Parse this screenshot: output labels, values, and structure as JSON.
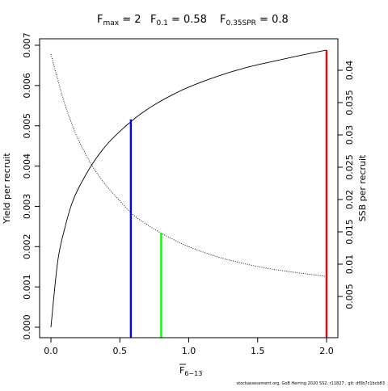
{
  "chart_data": {
    "type": "line",
    "title_parts": {
      "fmax": {
        "base": "F",
        "sub": "max",
        "value": "2"
      },
      "f01": {
        "base": "F",
        "sub": "0.1",
        "value": "0.58"
      },
      "fspr": {
        "base": "F",
        "sub": "0.35SPR",
        "value": "0.8"
      }
    },
    "xlabel": {
      "base": "F",
      "sub": "6−13",
      "overbar": true
    },
    "ylabel_left": "Yield per recruit",
    "ylabel_right": "SSB per recruit",
    "xlim": [
      0,
      2
    ],
    "ylim_left": [
      0,
      0.007
    ],
    "ylim_right": [
      0,
      0.043
    ],
    "x_ticks": [
      {
        "v": 0,
        "label": "0.0"
      },
      {
        "v": 0.5,
        "label": "0.5"
      },
      {
        "v": 1,
        "label": "1.0"
      },
      {
        "v": 1.5,
        "label": "1.5"
      },
      {
        "v": 2,
        "label": "2.0"
      }
    ],
    "y_ticks_left": [
      {
        "v": 0,
        "label": "0.000"
      },
      {
        "v": 0.001,
        "label": "0.001"
      },
      {
        "v": 0.002,
        "label": "0.002"
      },
      {
        "v": 0.003,
        "label": "0.003"
      },
      {
        "v": 0.004,
        "label": "0.004"
      },
      {
        "v": 0.005,
        "label": "0.005"
      },
      {
        "v": 0.006,
        "label": "0.006"
      },
      {
        "v": 0.007,
        "label": "0.007"
      }
    ],
    "y_ticks_right": [
      {
        "v": 0.005,
        "label": "0.005"
      },
      {
        "v": 0.01,
        "label": "0.01"
      },
      {
        "v": 0.015,
        "label": "0.015"
      },
      {
        "v": 0.02,
        "label": "0.02"
      },
      {
        "v": 0.025,
        "label": "0.025"
      },
      {
        "v": 0.03,
        "label": "0.03"
      },
      {
        "v": 0.035,
        "label": "0.035"
      },
      {
        "v": 0.04,
        "label": "0.04"
      }
    ],
    "series": [
      {
        "axis": "left",
        "style": "solid",
        "color": "#000000",
        "x": [
          0,
          0.05,
          0.1,
          0.15,
          0.2,
          0.3,
          0.4,
          0.5,
          0.6,
          0.7,
          0.8,
          0.9,
          1.0,
          1.2,
          1.4,
          1.6,
          1.8,
          2.0
        ],
        "y": [
          0,
          0.00165,
          0.00245,
          0.00305,
          0.00345,
          0.00405,
          0.00451,
          0.00486,
          0.00516,
          0.00541,
          0.00562,
          0.0058,
          0.00596,
          0.00622,
          0.00643,
          0.00659,
          0.00674,
          0.00688
        ]
      },
      {
        "axis": "right",
        "style": "dotted",
        "color": "#000000",
        "x": [
          0,
          0.05,
          0.1,
          0.15,
          0.2,
          0.3,
          0.4,
          0.5,
          0.6,
          0.7,
          0.8,
          0.9,
          1.0,
          1.2,
          1.4,
          1.6,
          1.8,
          2.0
        ],
        "y": [
          0.0425,
          0.0385,
          0.0348,
          0.0318,
          0.0292,
          0.0252,
          0.0222,
          0.0198,
          0.0176,
          0.0161,
          0.0148,
          0.0137,
          0.0127,
          0.0112,
          0.0101,
          0.00925,
          0.00865,
          0.0081
        ]
      }
    ],
    "reference_lines": [
      {
        "name": "F0.1",
        "x": 0.58,
        "axis": "left",
        "y": 0.00516,
        "color": "#0000ff"
      },
      {
        "name": "F0.35SPR",
        "x": 0.8,
        "axis": "right",
        "y": 0.0148,
        "color": "#00ff00"
      },
      {
        "name": "Fmax",
        "x": 2.0,
        "axis": "left",
        "y": 0.00688,
        "color": "#ff0000"
      }
    ],
    "grid": false,
    "legend": "none"
  },
  "footer": "stockassessment.org, GoB Herring 2020 SS2, r11827 , git: df0b7c1bcb83"
}
